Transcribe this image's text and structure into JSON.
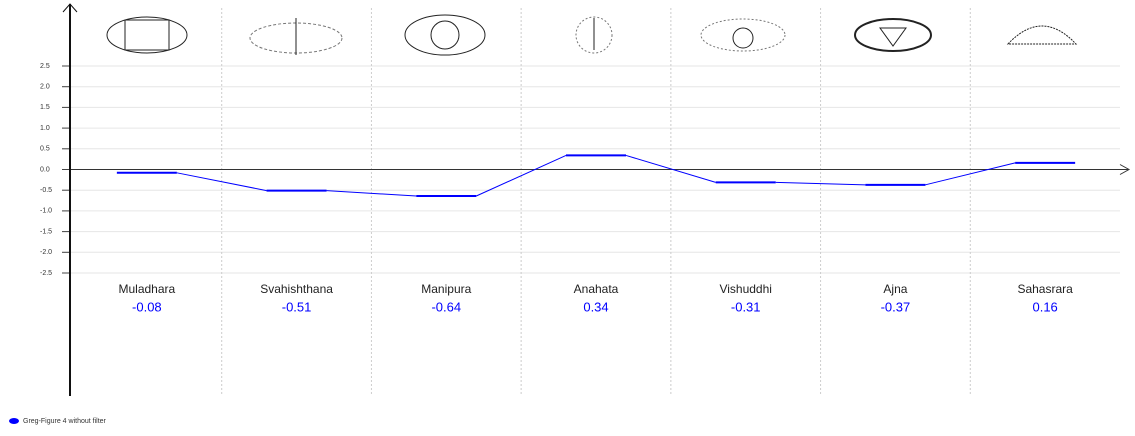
{
  "chart_data": {
    "type": "line",
    "categories": [
      "Muladhara",
      "Svahishthana",
      "Manipura",
      "Anahata",
      "Vishuddhi",
      "Ajna",
      "Sahasrara"
    ],
    "series": [
      {
        "name": "Greg-Figure 4 without filter",
        "color": "#0000ff",
        "values": [
          -0.08,
          -0.51,
          -0.64,
          0.34,
          -0.31,
          -0.37,
          0.16
        ]
      }
    ],
    "ylim": [
      -2.5,
      2.5
    ],
    "yticks": [
      -2.5,
      {
        "value": -2,
        "label": "-2.0"
      },
      -1.5,
      {
        "value": -1,
        "label": "-1.0"
      },
      -0.5,
      {
        "value": 0,
        "label": "0.0"
      },
      0.5,
      {
        "value": 1,
        "label": "1.0"
      },
      1.5,
      {
        "value": 2,
        "label": "2.0"
      },
      2.5
    ],
    "grid": true
  }
}
